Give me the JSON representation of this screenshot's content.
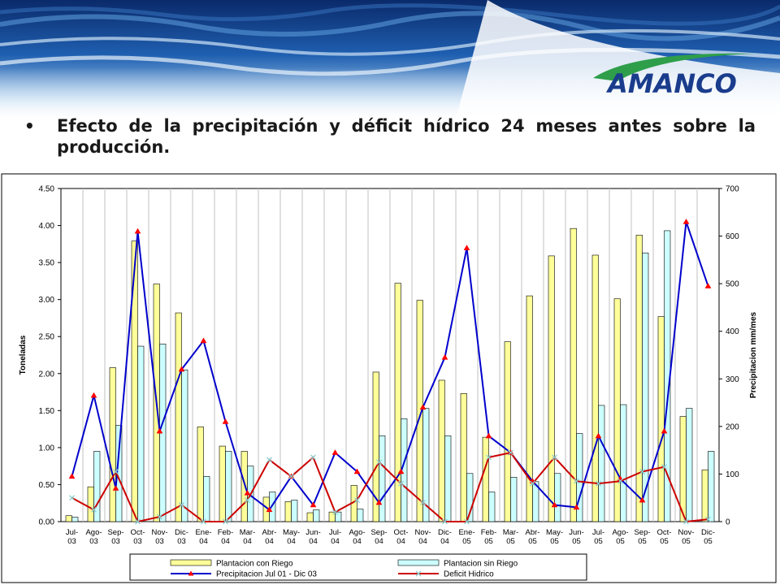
{
  "slide": {
    "bullet": "•",
    "title": "Efecto de la precipitación y déficit hídrico 24 meses antes sobre la producción.",
    "logo_text": "AMANCO",
    "colors": {
      "logo_blue": "#1a3c8c",
      "logo_green": "#2e9e4a",
      "banner_dark": "#0a2a6a",
      "banner_light": "#9cc4e8"
    }
  },
  "chart_data": {
    "type": "bar+line",
    "categories": [
      "Jul-03",
      "Ago-03",
      "Sep-03",
      "Oct-03",
      "Nov-03",
      "Dic-03",
      "Ene-04",
      "Feb-04",
      "Mar-04",
      "Abr-04",
      "May-04",
      "Jun-04",
      "Jul-04",
      "Ago-04",
      "Sep-04",
      "Oct-04",
      "Nov-04",
      "Dic-04",
      "Ene-05",
      "Feb-05",
      "Mar-05",
      "Abr-05",
      "May-05",
      "Jun-05",
      "Jul-05",
      "Ago-05",
      "Sep-05",
      "Oct-05",
      "Nov-05",
      "Dic-05"
    ],
    "ylabel": "Toneladas",
    "y2label": "Precipitacion mm/mes",
    "ylim": [
      0,
      4.5
    ],
    "yticks": [
      "0.00",
      "0.50",
      "1.00",
      "1.50",
      "2.00",
      "2.50",
      "3.00",
      "3.50",
      "4.00",
      "4.50"
    ],
    "y2lim": [
      0,
      700
    ],
    "y2ticks": [
      "0",
      "100",
      "200",
      "300",
      "400",
      "500",
      "600",
      "700"
    ],
    "grid": "vertical",
    "legend_position": "bottom",
    "series": [
      {
        "name": "Plantacion con Riego",
        "kind": "bar",
        "axis": "left",
        "color": "#ffff99",
        "values": [
          0.08,
          0.47,
          2.08,
          3.79,
          3.21,
          2.82,
          1.28,
          1.02,
          0.95,
          0.33,
          0.27,
          0.12,
          0.13,
          0.49,
          2.02,
          3.22,
          2.99,
          1.91,
          1.73,
          1.14,
          2.43,
          3.05,
          3.59,
          3.96,
          3.6,
          3.01,
          3.87,
          2.77,
          1.42,
          0.7
        ]
      },
      {
        "name": "Plantacion sin Riego",
        "kind": "bar",
        "axis": "left",
        "color": "#ccffff",
        "values": [
          0.06,
          0.95,
          1.3,
          2.37,
          2.4,
          2.05,
          0.61,
          0.95,
          0.75,
          0.4,
          0.29,
          0.16,
          0.13,
          0.17,
          1.16,
          1.39,
          1.53,
          1.16,
          0.65,
          0.4,
          0.6,
          0.54,
          0.65,
          1.19,
          1.57,
          1.58,
          3.63,
          3.93,
          1.53,
          0.95
        ]
      },
      {
        "name": "Precipitacion Jul 01 - Dic 03",
        "kind": "line",
        "axis": "right",
        "color": "#0000cc",
        "marker": "triangle",
        "values": [
          95,
          265,
          70,
          610,
          190,
          320,
          380,
          210,
          60,
          25,
          95,
          35,
          145,
          105,
          40,
          105,
          240,
          345,
          575,
          180,
          145,
          85,
          35,
          30,
          180,
          90,
          45,
          190,
          630,
          495
        ]
      },
      {
        "name": "Deficit Hidrico",
        "kind": "line",
        "axis": "right",
        "color": "#cc0000",
        "marker": "x",
        "values": [
          50,
          25,
          105,
          0,
          10,
          35,
          0,
          0,
          45,
          130,
          95,
          135,
          20,
          45,
          125,
          80,
          40,
          0,
          0,
          135,
          145,
          80,
          135,
          85,
          80,
          85,
          105,
          115,
          0,
          5
        ]
      }
    ]
  }
}
